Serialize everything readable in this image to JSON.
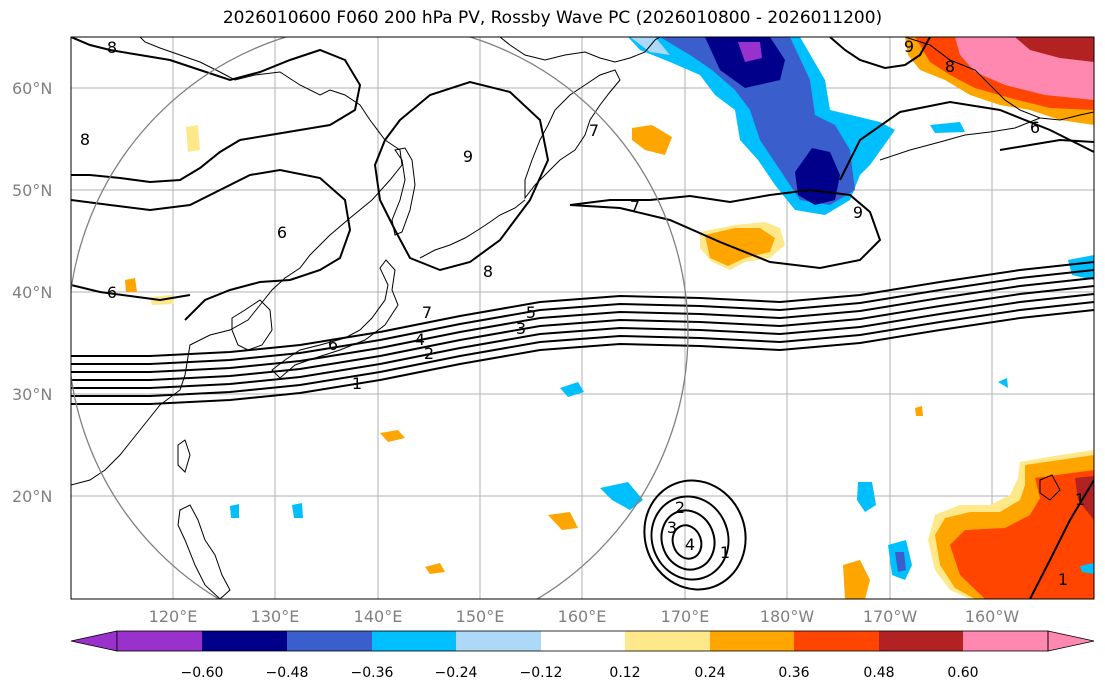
{
  "title": "2026010600 F060 200 hPa PV, Rossby Wave PC (2026010800 - 2026011200)",
  "lat_ticks": [
    "60°N",
    "50°N",
    "40°N",
    "30°N",
    "20°N"
  ],
  "lon_ticks": [
    "120°E",
    "130°E",
    "140°E",
    "150°E",
    "160°E",
    "170°E",
    "180°W",
    "170°W",
    "160°W"
  ],
  "colorbar": {
    "tick_labels": [
      "−0.60",
      "−0.48",
      "−0.36",
      "−0.24",
      "−0.12",
      "0.12",
      "0.24",
      "0.36",
      "0.48",
      "0.60"
    ],
    "colors": [
      "#9932cc",
      "#00008b",
      "#3a5fcd",
      "#00bfff",
      "#add8f8",
      "#ffffff",
      "#ffe88a",
      "#ffa500",
      "#ff4500",
      "#b22222",
      "#ff88b0"
    ]
  },
  "contour_labels": [
    "1",
    "2",
    "3",
    "4",
    "5",
    "6",
    "7",
    "8",
    "9"
  ],
  "colors": {
    "grid": "#b0b0b0",
    "tick_text": "#808080",
    "circle": "#808080"
  }
}
